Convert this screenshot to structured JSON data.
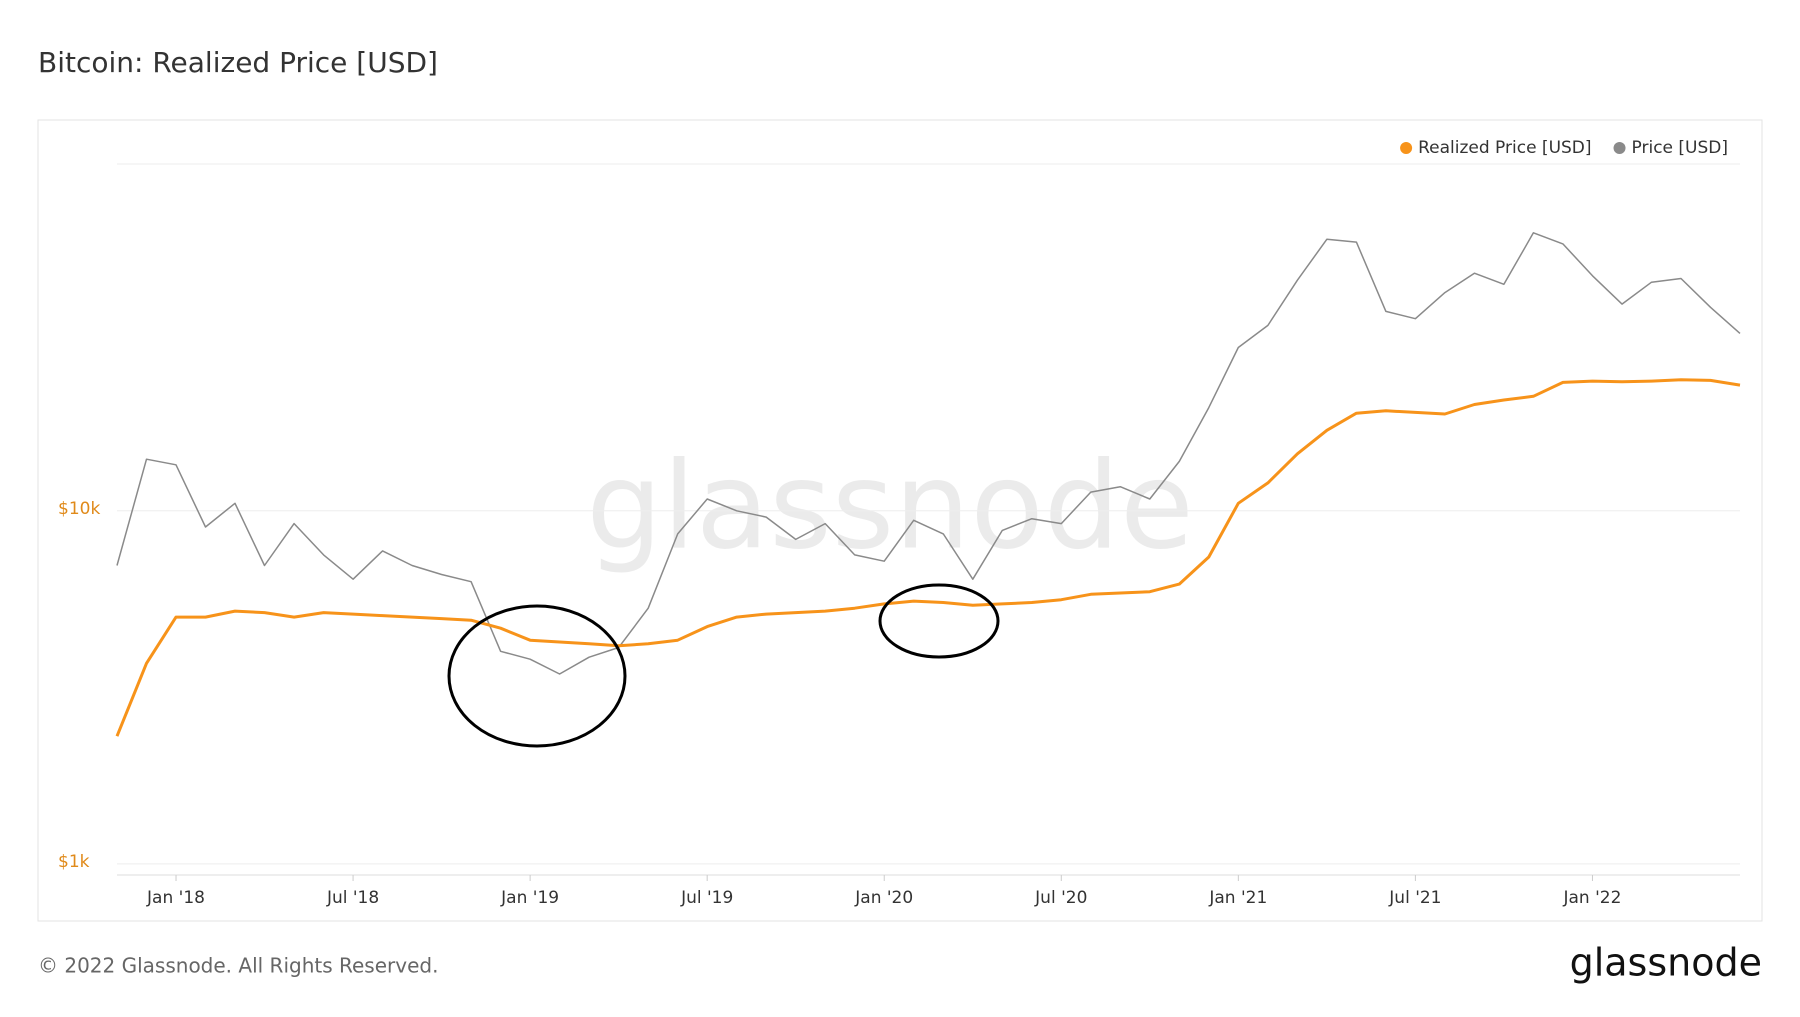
{
  "chart_data": {
    "type": "line",
    "title": "Bitcoin: Realized Price [USD]",
    "watermark": "glassnode",
    "footer": "© 2022 Glassnode. All Rights Reserved.",
    "logo": "glassnode",
    "log_scale": true,
    "grid": true,
    "legend_position": "top-right",
    "x": [
      "2017-11",
      "2017-12",
      "2018-01",
      "2018-02",
      "2018-03",
      "2018-04",
      "2018-05",
      "2018-06",
      "2018-07",
      "2018-08",
      "2018-09",
      "2018-10",
      "2018-11",
      "2018-12",
      "2019-01",
      "2019-02",
      "2019-03",
      "2019-04",
      "2019-05",
      "2019-06",
      "2019-07",
      "2019-08",
      "2019-09",
      "2019-10",
      "2019-11",
      "2019-12",
      "2020-01",
      "2020-02",
      "2020-03",
      "2020-04",
      "2020-05",
      "2020-06",
      "2020-07",
      "2020-08",
      "2020-09",
      "2020-10",
      "2020-11",
      "2020-12",
      "2021-01",
      "2021-02",
      "2021-03",
      "2021-04",
      "2021-05",
      "2021-06",
      "2021-07",
      "2021-08",
      "2021-09",
      "2021-10",
      "2021-11",
      "2021-12",
      "2022-01",
      "2022-02",
      "2022-03",
      "2022-04",
      "2022-05",
      "2022-06"
    ],
    "xlim": [
      "2017-11",
      "2022-06"
    ],
    "xticks": [
      {
        "value": "2018-01",
        "label": "Jan '18"
      },
      {
        "value": "2018-07",
        "label": "Jul '18"
      },
      {
        "value": "2019-01",
        "label": "Jan '19"
      },
      {
        "value": "2019-07",
        "label": "Jul '19"
      },
      {
        "value": "2020-01",
        "label": "Jan '20"
      },
      {
        "value": "2020-07",
        "label": "Jul '20"
      },
      {
        "value": "2021-01",
        "label": "Jan '21"
      },
      {
        "value": "2021-07",
        "label": "Jul '21"
      },
      {
        "value": "2022-01",
        "label": "Jan '22"
      }
    ],
    "ylim": [
      930,
      96000
    ],
    "yticks": [
      {
        "value": 1000,
        "label": "$1k"
      },
      {
        "value": 10000,
        "label": "$10k"
      }
    ],
    "series": [
      {
        "name": "Realized Price [USD]",
        "color": "#f7931a",
        "values": [
          2300,
          3700,
          5000,
          5000,
          5200,
          5150,
          5000,
          5150,
          5100,
          5050,
          5000,
          4950,
          4900,
          4650,
          4300,
          4250,
          4200,
          4150,
          4200,
          4300,
          4700,
          5000,
          5100,
          5150,
          5200,
          5300,
          5450,
          5550,
          5500,
          5400,
          5450,
          5500,
          5600,
          5800,
          5850,
          5900,
          6200,
          7400,
          10500,
          12000,
          14500,
          16900,
          18900,
          19200,
          19000,
          18800,
          20000,
          20600,
          21100,
          23100,
          23300,
          23200,
          23300,
          23500,
          23400,
          22700
        ]
      },
      {
        "name": "Price [USD]",
        "color": "#8a8a8a",
        "values": [
          7000,
          14000,
          13500,
          9000,
          10500,
          7000,
          9200,
          7500,
          6400,
          7700,
          7000,
          6600,
          6300,
          4000,
          3800,
          3450,
          3850,
          4100,
          5300,
          8600,
          10800,
          10000,
          9600,
          8300,
          9200,
          7500,
          7200,
          9400,
          8600,
          6400,
          8800,
          9500,
          9200,
          11300,
          11700,
          10800,
          13800,
          19600,
          29000,
          33500,
          45000,
          58800,
          57700,
          36700,
          35000,
          41500,
          47100,
          43800,
          61300,
          57000,
          46300,
          38500,
          44400,
          45500,
          37700,
          31800
        ]
      }
    ]
  }
}
